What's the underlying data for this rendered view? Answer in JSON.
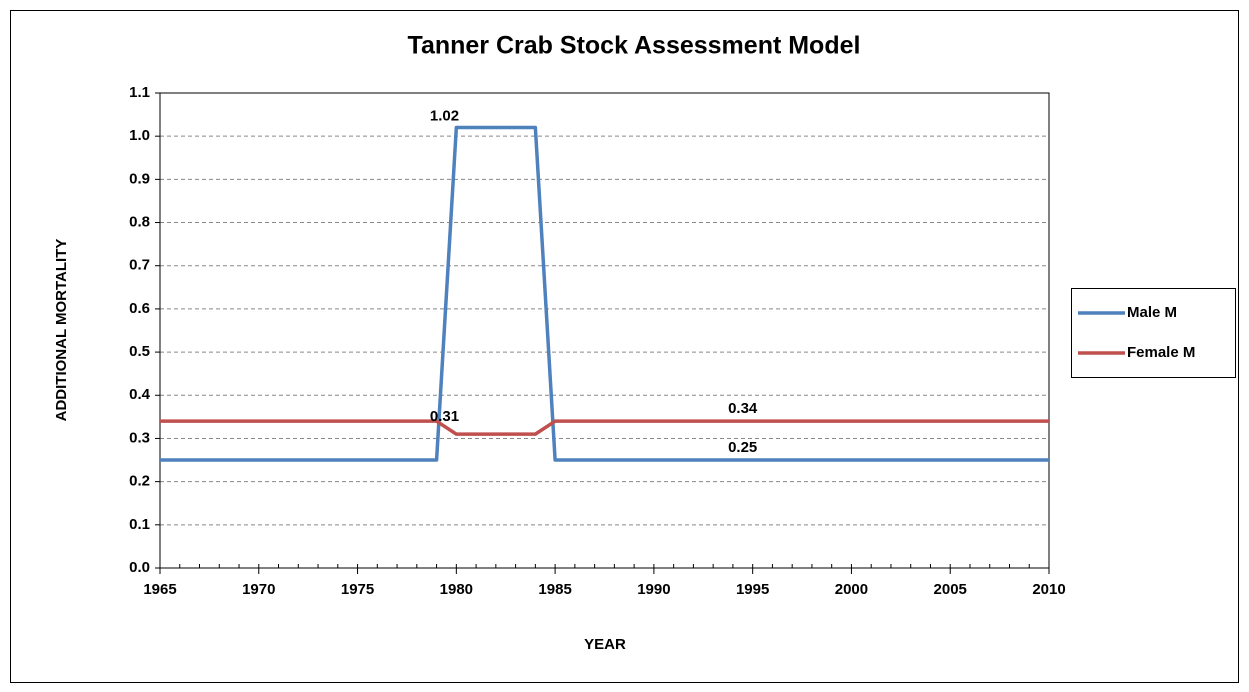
{
  "chart_data": {
    "type": "line",
    "title": "Tanner Crab Stock Assessment Model",
    "x_label": "YEAR",
    "y_label": "ADDITIONAL MORTALITY",
    "x": [
      1965,
      1966,
      1967,
      1968,
      1969,
      1970,
      1971,
      1972,
      1973,
      1974,
      1975,
      1976,
      1977,
      1978,
      1979,
      1980,
      1981,
      1982,
      1983,
      1984,
      1985,
      1986,
      1987,
      1988,
      1989,
      1990,
      1991,
      1992,
      1993,
      1994,
      1995,
      1996,
      1997,
      1998,
      1999,
      2000,
      2001,
      2002,
      2003,
      2004,
      2005,
      2006,
      2007,
      2008,
      2009,
      2010
    ],
    "series": [
      {
        "name": "Male M",
        "color": "#4f81bd",
        "values": [
          0.25,
          0.25,
          0.25,
          0.25,
          0.25,
          0.25,
          0.25,
          0.25,
          0.25,
          0.25,
          0.25,
          0.25,
          0.25,
          0.25,
          0.25,
          1.02,
          1.02,
          1.02,
          1.02,
          1.02,
          0.25,
          0.25,
          0.25,
          0.25,
          0.25,
          0.25,
          0.25,
          0.25,
          0.25,
          0.25,
          0.25,
          0.25,
          0.25,
          0.25,
          0.25,
          0.25,
          0.25,
          0.25,
          0.25,
          0.25,
          0.25,
          0.25,
          0.25,
          0.25,
          0.25,
          0.25
        ]
      },
      {
        "name": "Female M",
        "color": "#c0504d",
        "values": [
          0.34,
          0.34,
          0.34,
          0.34,
          0.34,
          0.34,
          0.34,
          0.34,
          0.34,
          0.34,
          0.34,
          0.34,
          0.34,
          0.34,
          0.34,
          0.31,
          0.31,
          0.31,
          0.31,
          0.31,
          0.34,
          0.34,
          0.34,
          0.34,
          0.34,
          0.34,
          0.34,
          0.34,
          0.34,
          0.34,
          0.34,
          0.34,
          0.34,
          0.34,
          0.34,
          0.34,
          0.34,
          0.34,
          0.34,
          0.34,
          0.34,
          0.34,
          0.34,
          0.34,
          0.34,
          0.34
        ]
      }
    ],
    "xlim": [
      1965,
      2010
    ],
    "xticks": [
      1965,
      1970,
      1975,
      1980,
      1985,
      1990,
      1995,
      2000,
      2005,
      2010
    ],
    "ylim": [
      0,
      1.1
    ],
    "yticks": [
      {
        "value": 0,
        "label": "0.0"
      },
      0.1,
      0.2,
      0.3,
      0.4,
      0.5,
      0.6,
      0.7,
      0.8,
      0.9,
      {
        "value": 1,
        "label": "1.0"
      },
      1.1
    ],
    "grid": true,
    "legend": "right"
  }
}
